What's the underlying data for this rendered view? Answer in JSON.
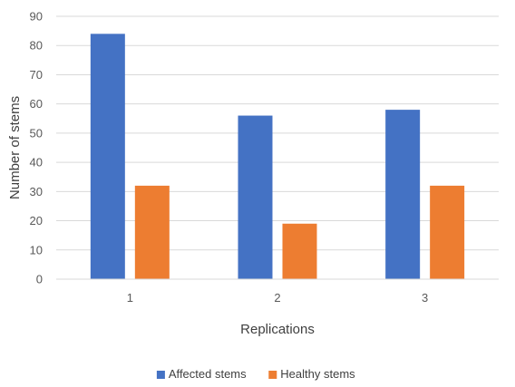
{
  "chart_data": {
    "type": "bar",
    "title": "",
    "xlabel": "Replications",
    "ylabel": "Number of stems",
    "categories": [
      "1",
      "2",
      "3"
    ],
    "series": [
      {
        "name": "Affected stems",
        "values": [
          84,
          56,
          58
        ],
        "color": "#4472C4"
      },
      {
        "name": "Healthy stems",
        "values": [
          32,
          19,
          32
        ],
        "color": "#ED7D31"
      }
    ],
    "ylim": [
      0,
      90
    ],
    "yticks": [
      "0",
      "10",
      "20",
      "30",
      "40",
      "50",
      "60",
      "70",
      "80",
      "90"
    ],
    "grid": true,
    "legend_position": "bottom"
  }
}
